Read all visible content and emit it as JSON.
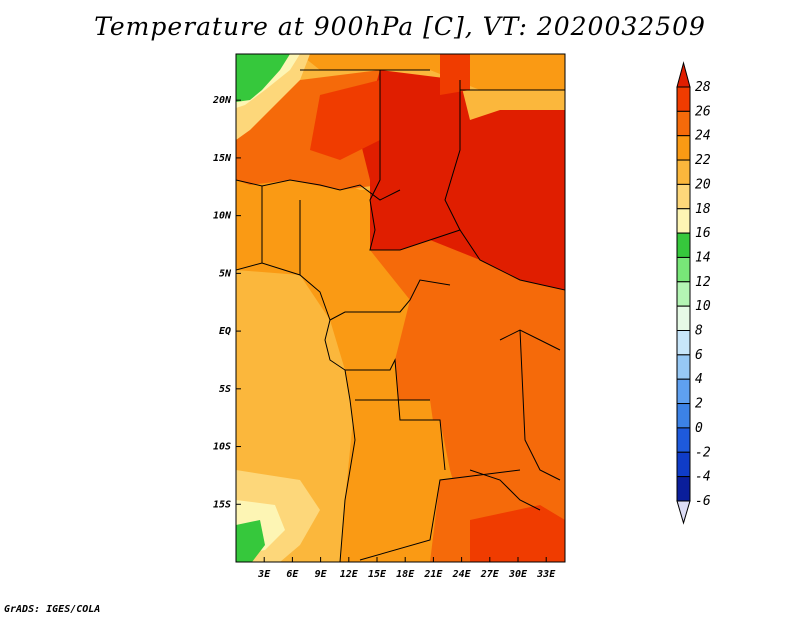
{
  "title": "Temperature at 900hPa [C], VT: 2020032509",
  "credit": "GrADS: IGES/COLA",
  "chart_data": {
    "type": "heatmap",
    "variable": "Temperature at 900hPa",
    "units": "C",
    "valid_time": "2020032509",
    "x_axis": {
      "range_deg": [
        0,
        35
      ],
      "ticks": [
        3,
        6,
        9,
        12,
        15,
        18,
        21,
        24,
        27,
        30,
        33
      ],
      "tick_labels": [
        "3E",
        "6E",
        "9E",
        "12E",
        "15E",
        "18E",
        "21E",
        "24E",
        "27E",
        "30E",
        "33E"
      ]
    },
    "y_axis": {
      "range_deg": [
        -20,
        24
      ],
      "ticks": [
        20,
        15,
        10,
        5,
        0,
        -5,
        -10,
        -15
      ],
      "tick_labels": [
        "20N",
        "15N",
        "10N",
        "5N",
        "EQ",
        "5S",
        "10S",
        "15S"
      ]
    },
    "colorbar": {
      "levels": [
        28,
        26,
        24,
        22,
        20,
        18,
        16,
        14,
        12,
        10,
        8,
        6,
        4,
        2,
        0,
        -2,
        -4,
        -6
      ],
      "labels": [
        "28",
        "26",
        "24",
        "22",
        "20",
        "18",
        "16",
        "14",
        "12",
        "10",
        "8",
        "6",
        "4",
        "2",
        "0",
        "-2",
        "-4",
        "-6"
      ],
      "colors": [
        "#e01e00",
        "#f03c00",
        "#f56a0a",
        "#fa9a14",
        "#fbb73c",
        "#fdd77a",
        "#fdf5b4",
        "#36c83c",
        "#78e678",
        "#b4f5b4",
        "#e6fae6",
        "#c8e6fa",
        "#96c8f5",
        "#5fa0f0",
        "#3c82e6",
        "#1e5adc",
        "#0f3cc8",
        "#0a1e9b",
        "#000f64"
      ]
    },
    "field_description": "Temperature field over central/western Africa, 0-35E, 20S-24N. Hottest (>26C) over Chad, Sudan and CAR; 22-26C over DR Congo and Angola; 20-22C over the Atlantic Gulf of Guinea; 14-16C patches at the NW and SW corners."
  }
}
